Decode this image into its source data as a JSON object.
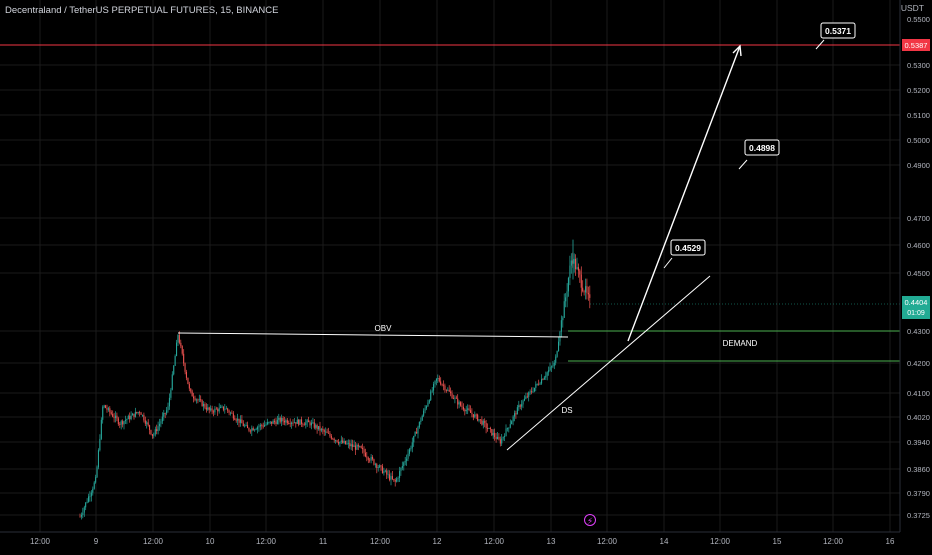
{
  "header": {
    "symbol_title": "Decentraland / TetherUS PERPETUAL FUTURES, 15, BINANCE",
    "currency": "USDT"
  },
  "price_axis": {
    "top_cut_label": "0.5500",
    "labels": [
      "0.5300",
      "0.5200",
      "0.5100",
      "0.5000",
      "0.4900",
      "0.4700",
      "0.4600",
      "0.4500",
      "0.4300",
      "0.4200",
      "0.4100",
      "0.4020",
      "0.3940",
      "0.3860",
      "0.3790",
      "0.3725"
    ],
    "red_level_label": "0.5387",
    "current_price_label": "0.4404",
    "countdown_label": "01:09",
    "red_color": "#f23645",
    "current_color": "#22ab94"
  },
  "time_axis": {
    "labels": [
      "12:00",
      "9",
      "12:00",
      "10",
      "12:00",
      "11",
      "12:00",
      "12",
      "12:00",
      "13",
      "12:00",
      "14",
      "12:00",
      "15",
      "12:00",
      "16"
    ]
  },
  "annotations": {
    "obv_label": "OBV",
    "demand_label": "DEMAND",
    "ds_label": "DS",
    "target_1": "0.4529",
    "target_2": "0.4898",
    "target_3": "0.5371"
  },
  "event_icon": "lightning-icon",
  "colors": {
    "background": "#000000",
    "up_candle": "#26a69a",
    "down_candle": "#ef5350",
    "drawing": "#ffffff",
    "demand_zone": "#4caf50",
    "grid": "#1a1a1a",
    "axis_text": "#b2b5be"
  },
  "chart_data": {
    "type": "candlestick",
    "title": "Decentraland / TetherUS PERPETUAL FUTURES, 15, BINANCE",
    "xlabel": "",
    "ylabel": "USDT",
    "ylim": [
      0.37,
      0.55
    ],
    "y_scale": "log",
    "interval": "15m",
    "x_ticks": [
      "12:00",
      "9",
      "12:00",
      "10",
      "12:00",
      "11",
      "12:00",
      "12",
      "12:00",
      "13",
      "12:00",
      "14",
      "12:00",
      "15",
      "12:00",
      "16"
    ],
    "close_series_approx": [
      {
        "t": "Jul 8 20:00",
        "close": 0.372
      },
      {
        "t": "Jul 9 00:00",
        "close": 0.383
      },
      {
        "t": "Jul 9 02:00",
        "close": 0.406
      },
      {
        "t": "Jul 9 06:00",
        "close": 0.4
      },
      {
        "t": "Jul 9 10:00",
        "close": 0.404
      },
      {
        "t": "Jul 9 12:00",
        "close": 0.396
      },
      {
        "t": "Jul 9 15:00",
        "close": 0.405
      },
      {
        "t": "Jul 9 17:00",
        "close": 0.429
      },
      {
        "t": "Jul 9 20:00",
        "close": 0.41
      },
      {
        "t": "Jul 10 00:00",
        "close": 0.404
      },
      {
        "t": "Jul 10 04:00",
        "close": 0.405
      },
      {
        "t": "Jul 10 09:00",
        "close": 0.398
      },
      {
        "t": "Jul 10 15:00",
        "close": 0.401
      },
      {
        "t": "Jul 10 21:00",
        "close": 0.4
      },
      {
        "t": "Jul 11 04:00",
        "close": 0.394
      },
      {
        "t": "Jul 11 10:00",
        "close": 0.392
      },
      {
        "t": "Jul 11 15:00",
        "close": 0.382
      },
      {
        "t": "Jul 11 19:00",
        "close": 0.392
      },
      {
        "t": "Jul 12 00:00",
        "close": 0.415
      },
      {
        "t": "Jul 12 05:00",
        "close": 0.406
      },
      {
        "t": "Jul 12 10:00",
        "close": 0.401
      },
      {
        "t": "Jul 12 15:00",
        "close": 0.394
      },
      {
        "t": "Jul 12 20:00",
        "close": 0.406
      },
      {
        "t": "Jul 13 02:00",
        "close": 0.42
      },
      {
        "t": "Jul 13 04:00",
        "close": 0.456
      },
      {
        "t": "Jul 13 05:00",
        "close": 0.45
      },
      {
        "t": "Jul 13 08:00",
        "close": 0.4404
      }
    ],
    "current_price": 0.4404,
    "marked_level": 0.5387,
    "demand_zone": [
      0.421,
      0.4305
    ],
    "obv_line_level": 0.429,
    "targets": [
      0.4529,
      0.4898,
      0.5371
    ]
  }
}
